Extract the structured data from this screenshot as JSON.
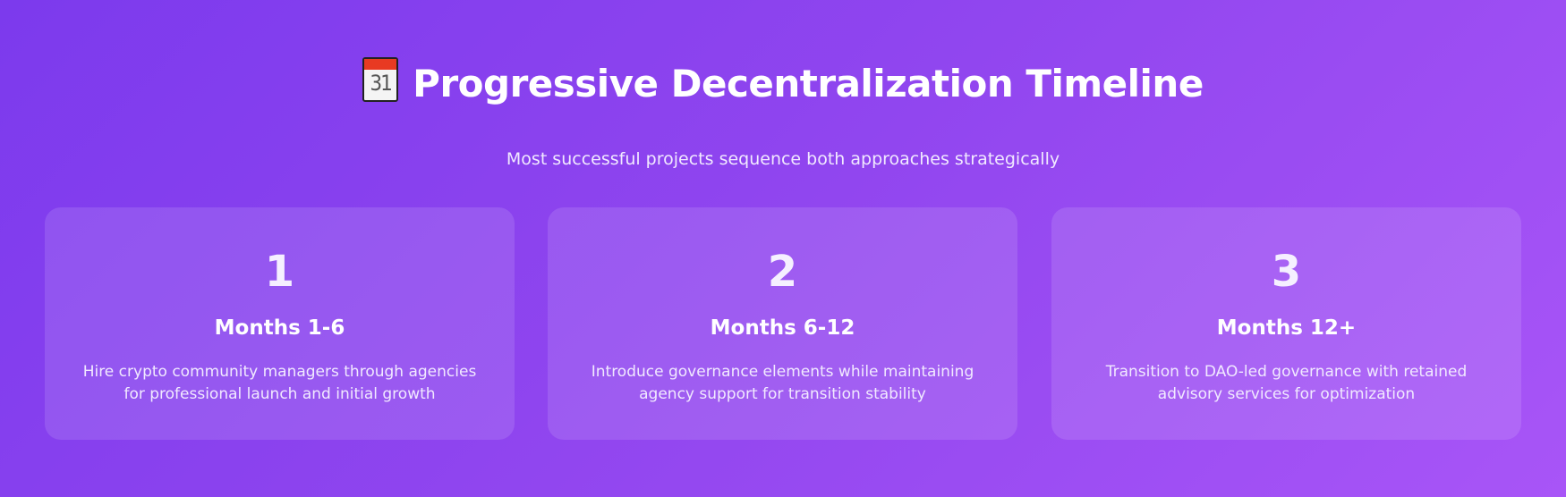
{
  "header": {
    "icon": "calendar-icon",
    "icon_text": "31",
    "title": "Progressive Decentralization Timeline",
    "subtitle": "Most successful projects sequence both approaches strategically"
  },
  "phases": [
    {
      "number": "1",
      "period": "Months 1-6",
      "description": "Hire crypto community managers through agencies for professional launch and initial growth"
    },
    {
      "number": "2",
      "period": "Months 6-12",
      "description": "Introduce governance elements while maintaining agency support for transition stability"
    },
    {
      "number": "3",
      "period": "Months 12+",
      "description": "Transition to DAO-led governance with retained advisory services for optimization"
    }
  ],
  "colors": {
    "gradient_start": "#7c3aed",
    "gradient_end": "#a855f7"
  }
}
